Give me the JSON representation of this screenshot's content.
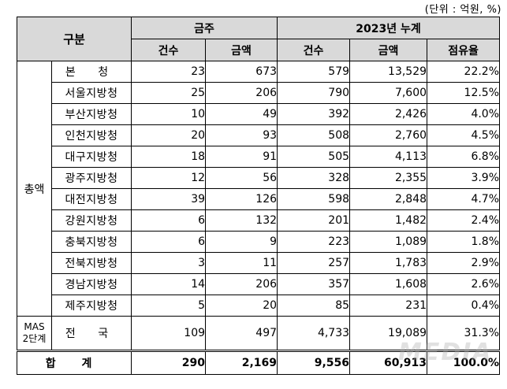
{
  "unit_note": "(단위 : 억원, %)",
  "header": {
    "gubun": "구분",
    "group_a": "금주",
    "group_b": "2023년 누계",
    "col_count": "건수",
    "col_amount": "금액",
    "col_count_b": "건수",
    "col_amount_b": "금액",
    "col_share": "점유율"
  },
  "group_total_label": "총액",
  "group_mas_label_1": "MAS",
  "group_mas_label_2": "2단계",
  "rows": [
    {
      "region": "본 청",
      "wk_cnt": "23",
      "wk_amt": "673",
      "cum_cnt": "579",
      "cum_amt": "13,529",
      "share": "22.2%"
    },
    {
      "region": "서울지방청",
      "wk_cnt": "25",
      "wk_amt": "206",
      "cum_cnt": "790",
      "cum_amt": "7,600",
      "share": "12.5%"
    },
    {
      "region": "부산지방청",
      "wk_cnt": "10",
      "wk_amt": "49",
      "cum_cnt": "392",
      "cum_amt": "2,426",
      "share": "4.0%"
    },
    {
      "region": "인천지방청",
      "wk_cnt": "20",
      "wk_amt": "93",
      "cum_cnt": "508",
      "cum_amt": "2,760",
      "share": "4.5%"
    },
    {
      "region": "대구지방청",
      "wk_cnt": "18",
      "wk_amt": "91",
      "cum_cnt": "505",
      "cum_amt": "4,113",
      "share": "6.8%"
    },
    {
      "region": "광주지방청",
      "wk_cnt": "12",
      "wk_amt": "56",
      "cum_cnt": "328",
      "cum_amt": "2,355",
      "share": "3.9%"
    },
    {
      "region": "대전지방청",
      "wk_cnt": "39",
      "wk_amt": "126",
      "cum_cnt": "598",
      "cum_amt": "2,848",
      "share": "4.7%"
    },
    {
      "region": "강원지방청",
      "wk_cnt": "6",
      "wk_amt": "132",
      "cum_cnt": "201",
      "cum_amt": "1,482",
      "share": "2.4%"
    },
    {
      "region": "충북지방청",
      "wk_cnt": "6",
      "wk_amt": "9",
      "cum_cnt": "223",
      "cum_amt": "1,089",
      "share": "1.8%"
    },
    {
      "region": "전북지방청",
      "wk_cnt": "3",
      "wk_amt": "11",
      "cum_cnt": "257",
      "cum_amt": "1,783",
      "share": "2.9%"
    },
    {
      "region": "경남지방청",
      "wk_cnt": "14",
      "wk_amt": "206",
      "cum_cnt": "357",
      "cum_amt": "1,608",
      "share": "2.6%"
    },
    {
      "region": "제주지방청",
      "wk_cnt": "5",
      "wk_amt": "20",
      "cum_cnt": "85",
      "cum_amt": "231",
      "share": "0.4%"
    },
    {
      "region": "전 국",
      "wk_cnt": "109",
      "wk_amt": "497",
      "cum_cnt": "4,733",
      "cum_amt": "19,089",
      "share": "31.3%"
    }
  ],
  "total": {
    "label": "합 계",
    "wk_cnt": "290",
    "wk_amt": "2,169",
    "cum_cnt": "9,556",
    "cum_amt": "60,913",
    "share": "100.0%"
  },
  "watermark": "MEDIA"
}
